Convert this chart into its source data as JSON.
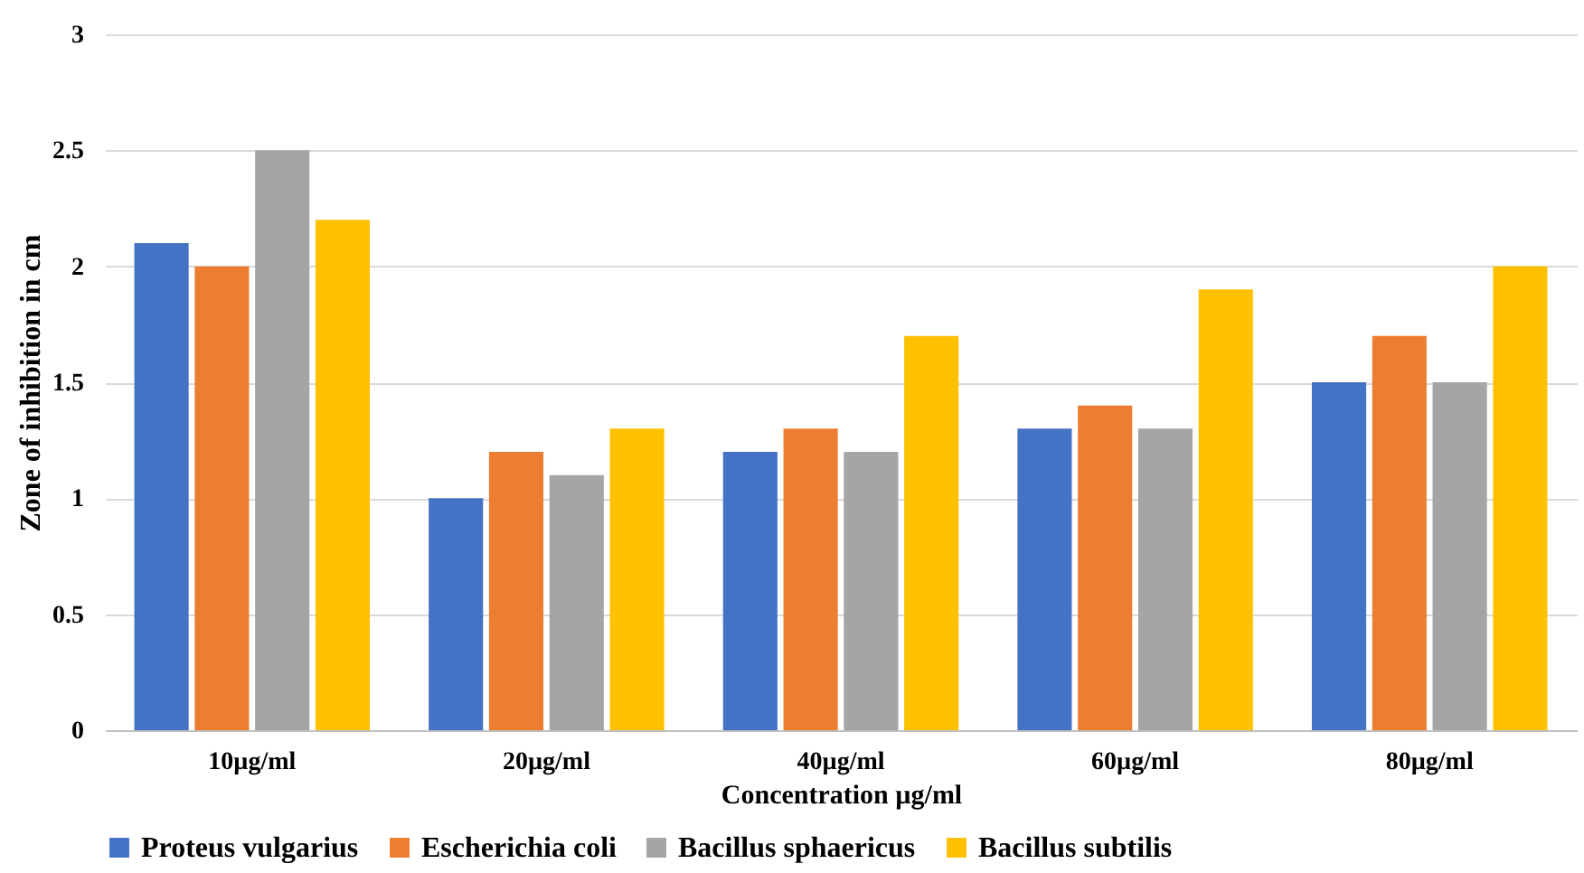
{
  "chart_data": {
    "type": "bar",
    "xlabel": "Concentration µg/ml",
    "ylabel": "Zone of inhibition in cm",
    "categories": [
      "10µg/ml",
      "20µg/ml",
      "40µg/ml",
      "60µg/ml",
      "80µg/ml"
    ],
    "series": [
      {
        "name": "Proteus vulgarius",
        "color": "#4472c4",
        "values": [
          2.1,
          1.0,
          1.2,
          1.3,
          1.5
        ]
      },
      {
        "name": "Escherichia coli",
        "color": "#ed7d31",
        "values": [
          2.0,
          1.2,
          1.3,
          1.4,
          1.7
        ]
      },
      {
        "name": "Bacillus sphaericus",
        "color": "#a5a5a5",
        "values": [
          2.5,
          1.1,
          1.2,
          1.3,
          1.5
        ]
      },
      {
        "name": "Bacillus subtilis",
        "color": "#ffc000",
        "values": [
          2.2,
          1.3,
          1.7,
          1.9,
          2.0
        ]
      }
    ],
    "ylim": [
      0,
      3
    ],
    "yticks": [
      0,
      0.5,
      1,
      1.5,
      2,
      2.5,
      3
    ],
    "grid": "y",
    "legend": "bottom"
  }
}
